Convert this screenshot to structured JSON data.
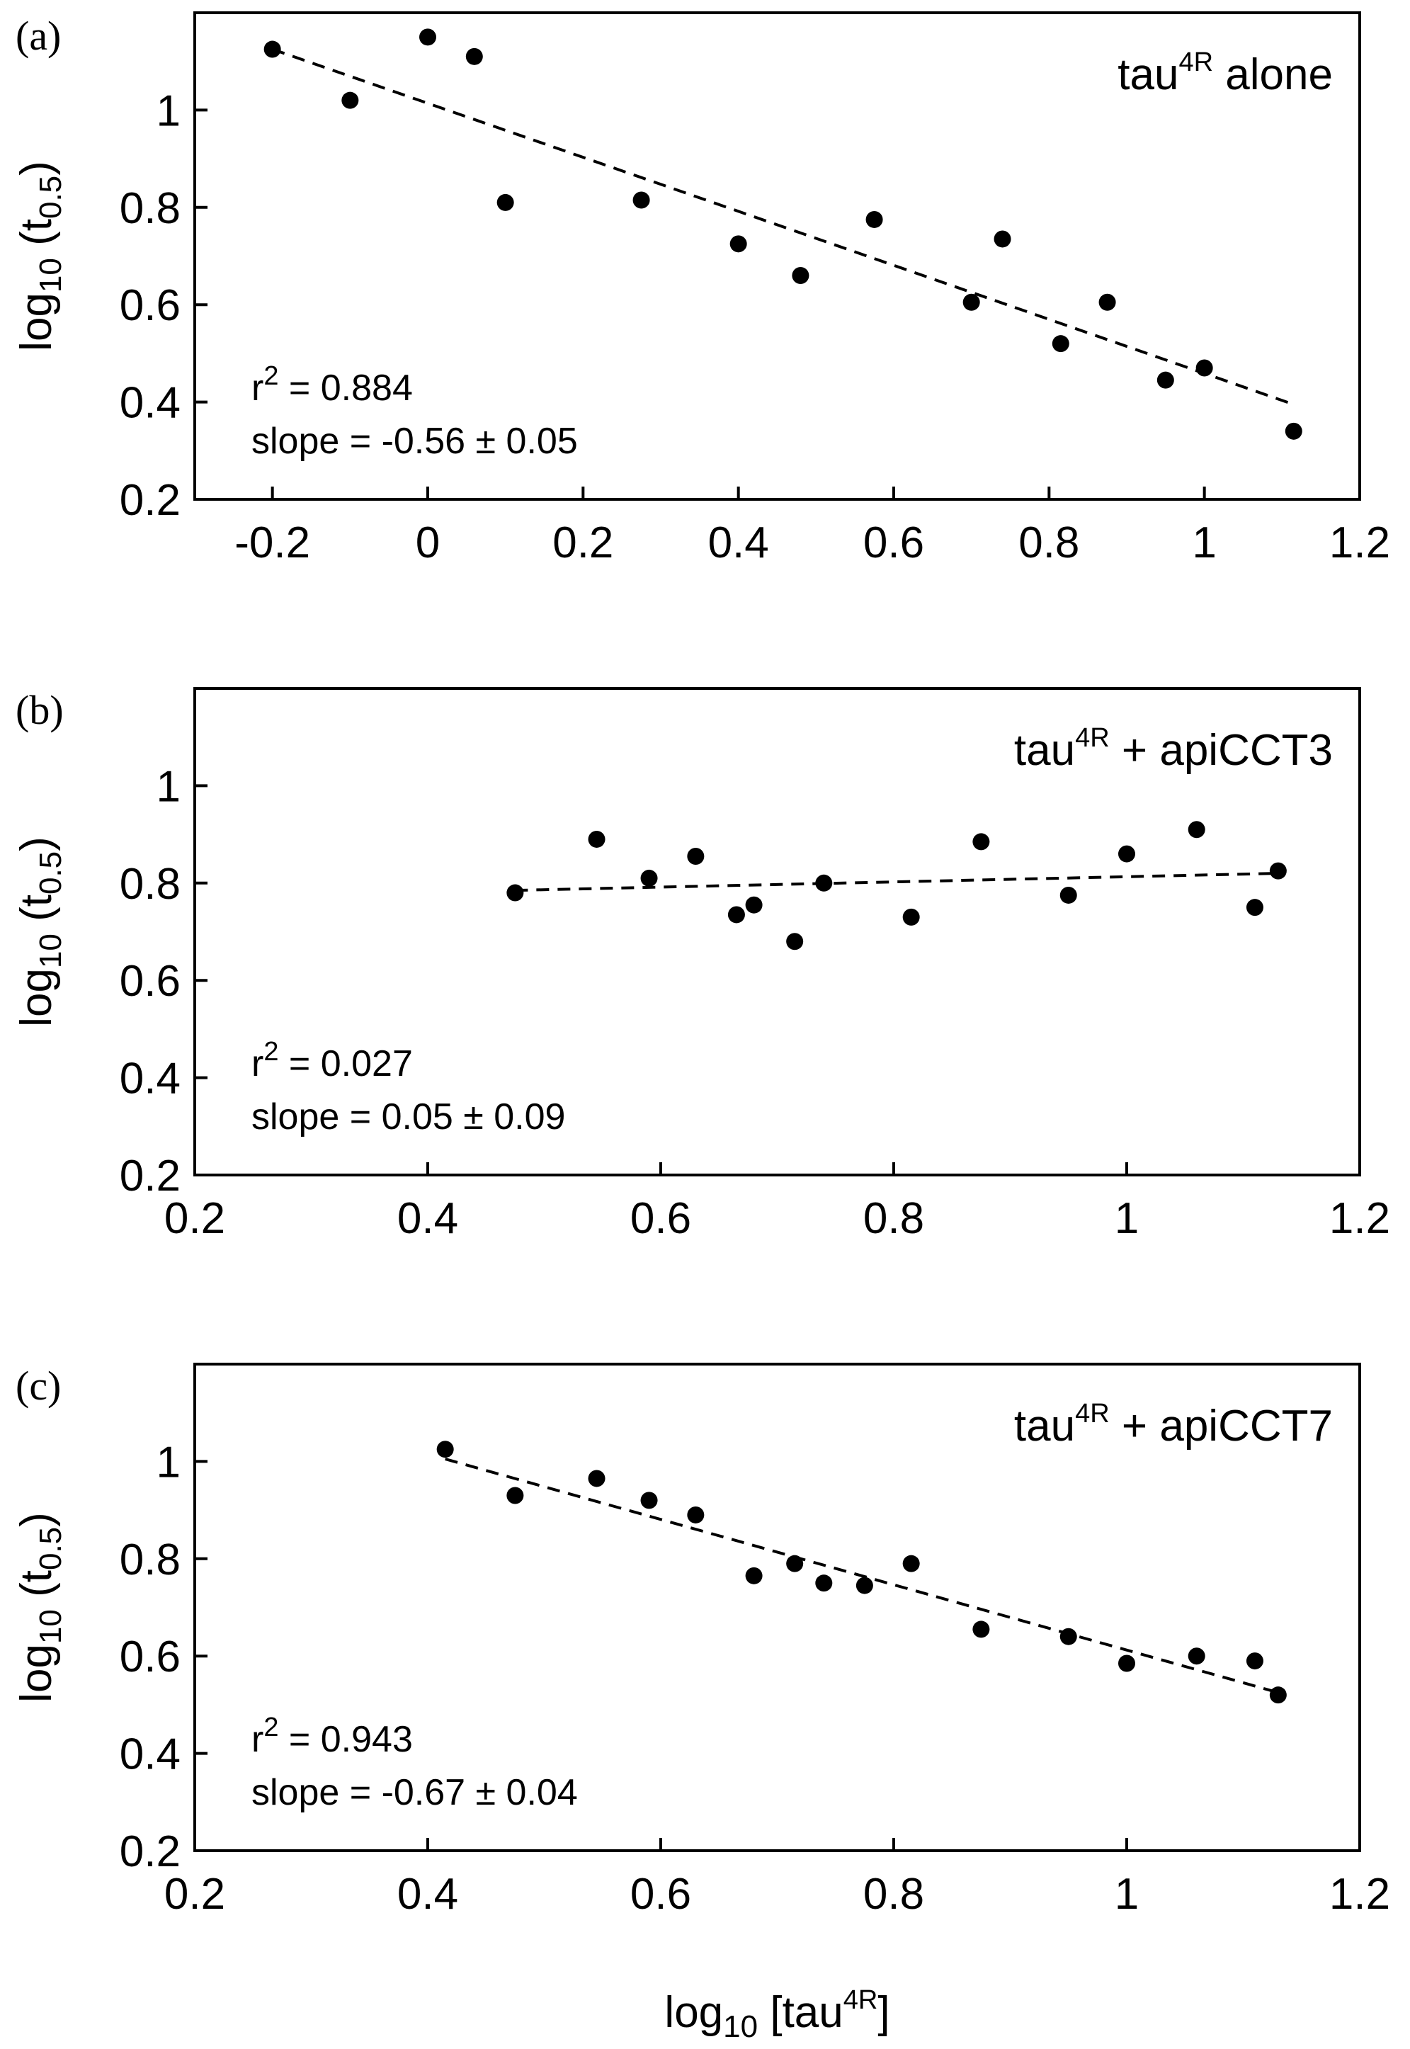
{
  "chart_data": [
    {
      "type": "scatter",
      "panel_label": "(a)",
      "legend": {
        "base": "tau",
        "sup": "4R",
        "rest": " alone"
      },
      "ylabel": {
        "pre": "log",
        "sub1": "10",
        "mid": " (t",
        "sub2": "0.5",
        "post": ")"
      },
      "xlabel": null,
      "xlim": [
        -0.3,
        1.2
      ],
      "ylim": [
        0.2,
        1.2
      ],
      "xticks": [
        -0.2,
        0,
        0.2,
        0.4,
        0.6,
        0.8,
        1,
        1.2
      ],
      "xtick_labels": [
        "-0.2",
        "0",
        "0.2",
        "0.4",
        "0.6",
        "0.8",
        "1",
        "1.2"
      ],
      "yticks": [
        0.2,
        0.4,
        0.6,
        0.8,
        1
      ],
      "ytick_labels": [
        "0.2",
        "0.4",
        "0.6",
        "0.8",
        "1"
      ],
      "points": [
        {
          "x": -0.2,
          "y": 1.125
        },
        {
          "x": -0.1,
          "y": 1.02
        },
        {
          "x": 0.0,
          "y": 1.15
        },
        {
          "x": 0.06,
          "y": 1.11
        },
        {
          "x": 0.1,
          "y": 0.81
        },
        {
          "x": 0.275,
          "y": 0.815
        },
        {
          "x": 0.4,
          "y": 0.725
        },
        {
          "x": 0.48,
          "y": 0.66
        },
        {
          "x": 0.575,
          "y": 0.775
        },
        {
          "x": 0.7,
          "y": 0.605
        },
        {
          "x": 0.74,
          "y": 0.735
        },
        {
          "x": 0.815,
          "y": 0.52
        },
        {
          "x": 0.875,
          "y": 0.605
        },
        {
          "x": 0.95,
          "y": 0.445
        },
        {
          "x": 1.0,
          "y": 0.47
        },
        {
          "x": 1.115,
          "y": 0.34
        }
      ],
      "fit_line": {
        "x": [
          -0.2,
          1.115
        ],
        "y": [
          1.125,
          0.395
        ]
      },
      "stats": {
        "r2_label": "r",
        "r2_sup": "2",
        "r2_value": " = 0.884",
        "slope_text": "slope = -0.56 ± 0.05"
      }
    },
    {
      "type": "scatter",
      "panel_label": "(b)",
      "legend": {
        "base": "tau",
        "sup": "4R",
        "rest": " + apiCCT3"
      },
      "ylabel": {
        "pre": "log",
        "sub1": "10",
        "mid": " (t",
        "sub2": "0.5",
        "post": ")"
      },
      "xlabel": null,
      "xlim": [
        0.2,
        1.2
      ],
      "ylim": [
        0.2,
        1.2
      ],
      "xticks": [
        0.2,
        0.4,
        0.6,
        0.8,
        1,
        1.2
      ],
      "xtick_labels": [
        "0.2",
        "0.4",
        "0.6",
        "0.8",
        "1",
        "1.2"
      ],
      "yticks": [
        0.2,
        0.4,
        0.6,
        0.8,
        1
      ],
      "ytick_labels": [
        "0.2",
        "0.4",
        "0.6",
        "0.8",
        "1"
      ],
      "points": [
        {
          "x": 0.475,
          "y": 0.78
        },
        {
          "x": 0.545,
          "y": 0.89
        },
        {
          "x": 0.59,
          "y": 0.81
        },
        {
          "x": 0.63,
          "y": 0.855
        },
        {
          "x": 0.665,
          "y": 0.735
        },
        {
          "x": 0.68,
          "y": 0.755
        },
        {
          "x": 0.715,
          "y": 0.68
        },
        {
          "x": 0.74,
          "y": 0.8
        },
        {
          "x": 0.815,
          "y": 0.73
        },
        {
          "x": 0.875,
          "y": 0.885
        },
        {
          "x": 0.95,
          "y": 0.775
        },
        {
          "x": 1.0,
          "y": 0.86
        },
        {
          "x": 1.06,
          "y": 0.91
        },
        {
          "x": 1.11,
          "y": 0.75
        },
        {
          "x": 1.13,
          "y": 0.825
        }
      ],
      "fit_line": {
        "x": [
          0.475,
          1.13
        ],
        "y": [
          0.785,
          0.82
        ]
      },
      "stats": {
        "r2_label": "r",
        "r2_sup": "2",
        "r2_value": " = 0.027",
        "slope_text": "slope = 0.05 ± 0.09"
      }
    },
    {
      "type": "scatter",
      "panel_label": "(c)",
      "legend": {
        "base": "tau",
        "sup": "4R",
        "rest": " + apiCCT7"
      },
      "ylabel": {
        "pre": "log",
        "sub1": "10",
        "mid": " (t",
        "sub2": "0.5",
        "post": ")"
      },
      "xlabel": {
        "pre": "log",
        "sub": "10",
        "mid": " [tau",
        "sup": "4R",
        "post": "]"
      },
      "xlim": [
        0.2,
        1.2
      ],
      "ylim": [
        0.2,
        1.2
      ],
      "xticks": [
        0.2,
        0.4,
        0.6,
        0.8,
        1,
        1.2
      ],
      "xtick_labels": [
        "0.2",
        "0.4",
        "0.6",
        "0.8",
        "1",
        "1.2"
      ],
      "yticks": [
        0.2,
        0.4,
        0.6,
        0.8,
        1
      ],
      "ytick_labels": [
        "0.2",
        "0.4",
        "0.6",
        "0.8",
        "1"
      ],
      "points": [
        {
          "x": 0.415,
          "y": 1.025
        },
        {
          "x": 0.475,
          "y": 0.93
        },
        {
          "x": 0.545,
          "y": 0.965
        },
        {
          "x": 0.59,
          "y": 0.92
        },
        {
          "x": 0.63,
          "y": 0.89
        },
        {
          "x": 0.68,
          "y": 0.765
        },
        {
          "x": 0.715,
          "y": 0.79
        },
        {
          "x": 0.74,
          "y": 0.75
        },
        {
          "x": 0.775,
          "y": 0.745
        },
        {
          "x": 0.815,
          "y": 0.79
        },
        {
          "x": 0.875,
          "y": 0.655
        },
        {
          "x": 0.95,
          "y": 0.64
        },
        {
          "x": 1.0,
          "y": 0.585
        },
        {
          "x": 1.06,
          "y": 0.6
        },
        {
          "x": 1.11,
          "y": 0.59
        },
        {
          "x": 1.13,
          "y": 0.52
        }
      ],
      "fit_line": {
        "x": [
          0.415,
          1.13
        ],
        "y": [
          1.005,
          0.525
        ]
      },
      "stats": {
        "r2_label": "r",
        "r2_sup": "2",
        "r2_value": " = 0.943",
        "slope_text": "slope = -0.67 ± 0.04"
      }
    }
  ]
}
